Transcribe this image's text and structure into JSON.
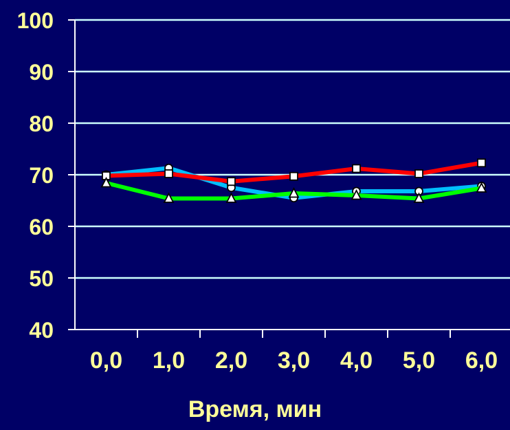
{
  "chart_data": {
    "type": "line",
    "title": "",
    "xlabel": "Время, мин",
    "ylabel": "",
    "categories": [
      "0,0",
      "1,0",
      "2,0",
      "3,0",
      "4,0",
      "5,0",
      "6,0"
    ],
    "ylim": [
      40,
      100
    ],
    "yticks": [
      "40",
      "50",
      "60",
      "70",
      "80",
      "90",
      "100"
    ],
    "grid": true,
    "legend": "none",
    "series": [
      {
        "color": "#00BFFF",
        "marker": "circle",
        "values": [
          70.0,
          71.3,
          67.5,
          65.5,
          66.8,
          66.8,
          67.8
        ]
      },
      {
        "color": "#FF0000",
        "marker": "square",
        "values": [
          69.8,
          70.2,
          68.7,
          69.7,
          71.2,
          70.2,
          72.3
        ]
      },
      {
        "color": "#00FF00",
        "marker": "triangle",
        "values": [
          68.4,
          65.4,
          65.4,
          66.4,
          66.0,
          65.4,
          67.4
        ]
      }
    ],
    "colors": {
      "background": "#000066",
      "text": "#FFFF99",
      "grid": "#CCFFFF",
      "axis": "#FFFFFF"
    }
  }
}
